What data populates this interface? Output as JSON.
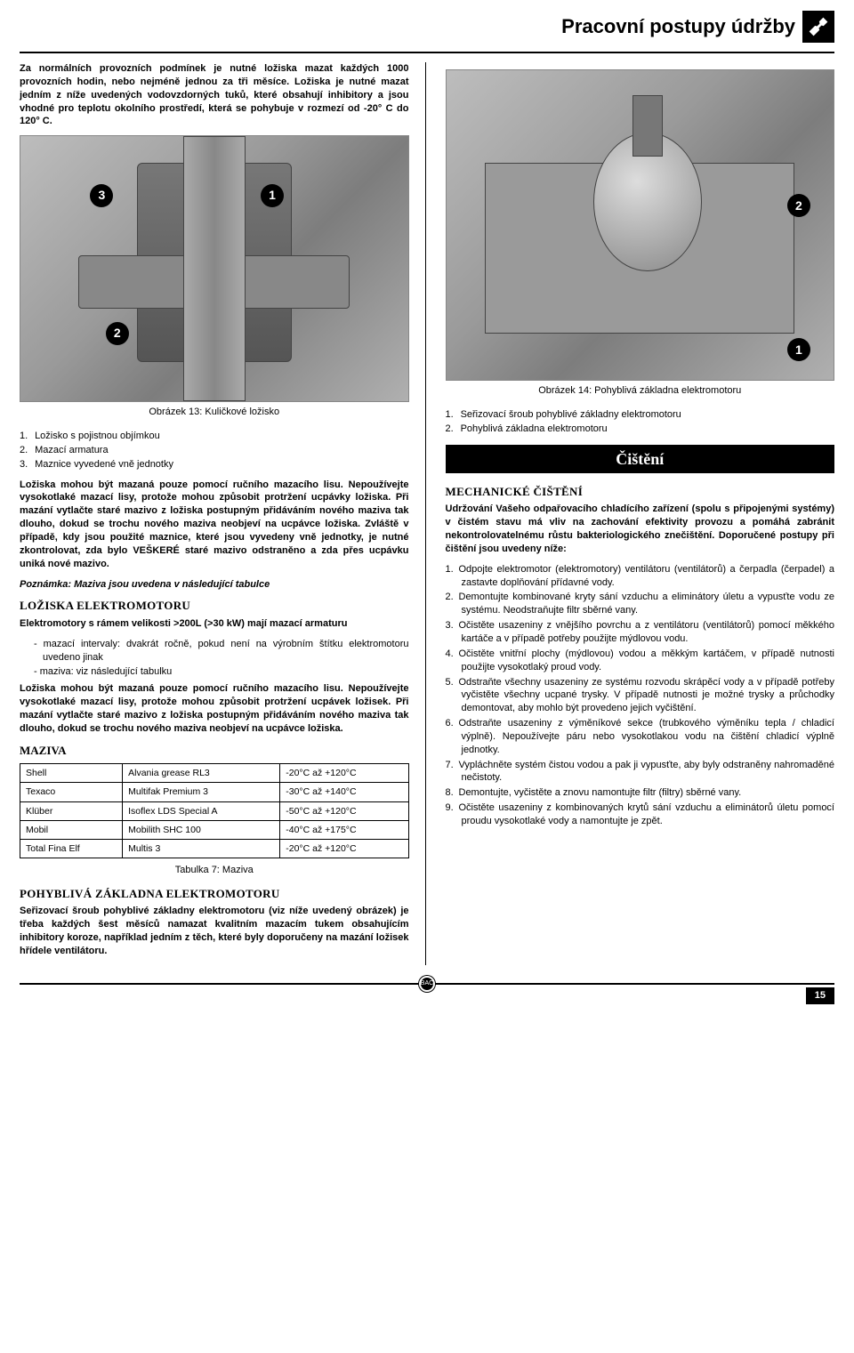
{
  "header": {
    "title": "Pracovní postupy údržby"
  },
  "left": {
    "intro1": "Za normálních provozních podmínek je nutné ložiska mazat každých 1000 provozních hodin, nebo nejméně jednou za tři měsíce. Ložiska je nutné mazat jedním z níže uvedených vodovzdorných tuků, které obsahují inhibitory a jsou vhodné pro teplotu okolního prostředí, která se pohybuje v rozmezí od -20° C do 120° C.",
    "fig13_caption": "Obrázek 13: Kuličkové ložisko",
    "fig13_badges": {
      "b1": "1",
      "b2": "2",
      "b3": "3"
    },
    "list1": {
      "n1": "1.",
      "t1": "Ložisko s pojistnou objímkou",
      "n2": "2.",
      "t2": "Mazací armatura",
      "n3": "3.",
      "t3": "Maznice vyvedené vně jednotky"
    },
    "para2": "Ložiska mohou být mazaná pouze pomocí ručního mazacího lisu. Nepoužívejte vysokotlaké mazací lisy, protože mohou způsobit protržení ucpávky ložiska. Při mazání vytlačte staré mazivo z ložiska postupným přidáváním nového maziva tak dlouho, dokud se trochu nového maziva neobjeví na ucpávce ložiska. Zvláště v případě, kdy jsou použité maznice, které jsou vyvedeny vně jednotky, je nutné zkontrolovat, zda bylo VEŠKERÉ staré mazivo odstraněno a zda přes ucpávku uniká nové mazivo.",
    "note": "Poznámka: Maziva jsou uvedena v následující tabulce",
    "h2_loz": "LOŽISKA ELEKTROMOTORU",
    "para3": "Elektromotory s rámem velikosti >200L (>30 kW) mají mazací armaturu",
    "sublist": {
      "s1": "mazací intervaly: dvakrát ročně, pokud není na výrobním štítku elektromotoru uvedeno jinak",
      "s2": "maziva: viz následující tabulku"
    },
    "para4": "Ložiska mohou být mazaná pouze pomocí ručního mazacího lisu. Nepoužívejte vysokotlaké mazací lisy, protože mohou způsobit protržení ucpávek ložisek. Při mazání vytlačte staré mazivo z ložiska postupným přidáváním nového maziva tak dlouho, dokud se trochu nového maziva neobjeví na ucpávce ložiska.",
    "h3_maziva": "MAZIVA",
    "table": {
      "rows": [
        [
          "Shell",
          "Alvania grease RL3",
          "-20°C až +120°C"
        ],
        [
          "Texaco",
          "Multifak Premium 3",
          "-30°C až +140°C"
        ],
        [
          "Klüber",
          "Isoflex LDS Special A",
          "-50°C až +120°C"
        ],
        [
          "Mobil",
          "Mobilith SHC 100",
          "-40°C až +175°C"
        ],
        [
          "Total Fina Elf",
          "Multis 3",
          "-20°C až +120°C"
        ]
      ]
    },
    "tabcap": "Tabulka 7: Maziva",
    "h2_poh": "POHYBLIVÁ ZÁKLADNA ELEKTROMOTORU",
    "para5": "Seřizovací šroub pohyblivé základny elektromotoru (viz níže uvedený obrázek) je třeba každých šest měsíců namazat kvalitním mazacím tukem obsahujícím inhibitory koroze, například jedním z těch, které byly doporučeny na mazání ložisek hřídele ventilátoru."
  },
  "right": {
    "fig14_badges": {
      "b1": "1",
      "b2": "2"
    },
    "fig14_caption": "Obrázek 14: Pohyblivá základna elektromotoru",
    "list2": {
      "n1": "1.",
      "t1": "Seřizovací šroub pohyblivé základny elektromotoru",
      "n2": "2.",
      "t2": "Pohyblivá základna elektromotoru"
    },
    "banner": "Čištění",
    "h2_mech": "MECHANICKÉ ČIŠTĚNÍ",
    "para_mech": "Udržování Vašeho odpařovacího chladícího zařízení (spolu s připojenými systémy) v čistém stavu má vliv na zachování efektivity provozu a pomáhá zabránit nekontrolovatelnému růstu bakteriologického znečištění. Doporučené postupy při čištění jsou uvedeny níže:",
    "steps": [
      "Odpojte elektromotor (elektromotory) ventilátoru (ventilátorů) a čerpadla (čerpadel) a zastavte doplňování přídavné vody.",
      "Demontujte kombinované kryty sání vzduchu a eliminátory úletu a vypusťte vodu ze systému. Neodstraňujte filtr sběrné vany.",
      "Očistěte usazeniny z vnějšího povrchu a z ventilátoru (ventilátorů) pomocí měkkého kartáče a v případě potřeby použijte mýdlovou vodu.",
      "Očistěte vnitřní plochy (mýdlovou) vodou a měkkým kartáčem, v případě nutnosti použijte vysokotlaký proud vody.",
      "Odstraňte všechny usazeniny ze systému rozvodu skrápěcí vody a v případě potřeby vyčistěte všechny ucpané trysky. V případě nutnosti je možné trysky a průchodky demontovat, aby mohlo být provedeno jejich vyčištění.",
      "Odstraňte usazeniny z výměníkové sekce (trubkového výměníku tepla / chladicí výplně). Nepoužívejte páru nebo vysokotlakou vodu na čištění chladicí výplně jednotky.",
      "Vypláchněte systém čistou vodou a pak ji vypusťte, aby byly odstraněny nahromaděné nečistoty.",
      "Demontujte, vyčistěte a znovu namontujte filtr (filtry) sběrné vany.",
      "Očistěte usazeniny z kombinovaných krytů sání vzduchu a eliminátorů úletu pomocí proudu vysokotlaké vody a namontujte je zpět."
    ]
  },
  "footer": {
    "logo": "BAC",
    "page": "15"
  }
}
